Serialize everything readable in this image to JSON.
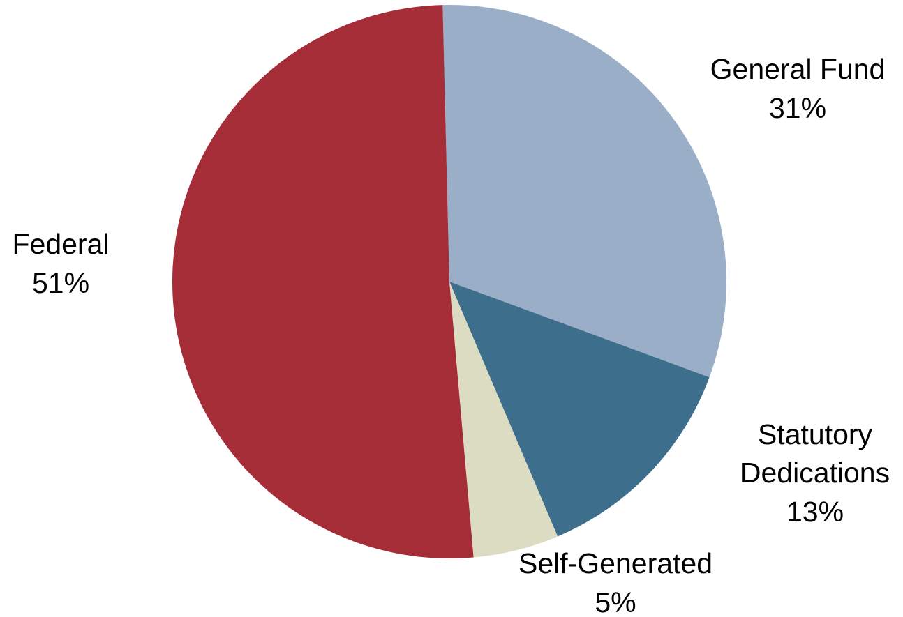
{
  "chart_data": {
    "type": "pie",
    "title": "",
    "slices": [
      {
        "label": "General Fund",
        "value": 31,
        "display": "31%",
        "color": "#9AAFC7"
      },
      {
        "label": "Statutory Dedications",
        "display_lines": [
          "Statutory",
          "Dedications"
        ],
        "value": 13,
        "display": "13%",
        "color": "#3D6E8C"
      },
      {
        "label": "Self-Generated",
        "value": 5,
        "display": "5%",
        "color": "#DCDCC3"
      },
      {
        "label": "Federal",
        "value": 51,
        "display": "51%",
        "color": "#A52D38"
      }
    ]
  }
}
